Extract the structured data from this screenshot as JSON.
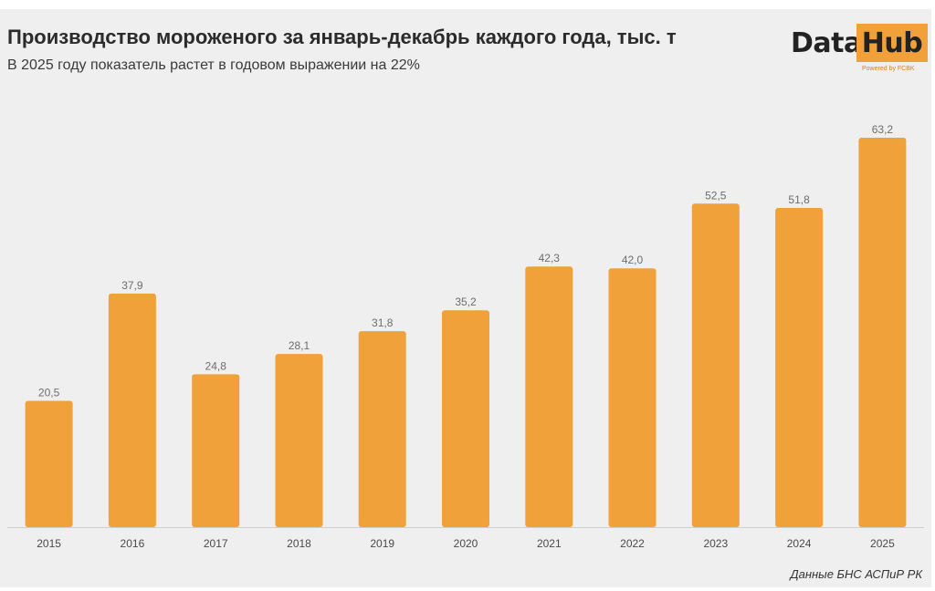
{
  "header": {
    "title": "Производство мороженого за январь-декабрь каждого года, тыс. т",
    "subtitle": "В 2025 году показатель растет в годовом выражении на 22%"
  },
  "logo": {
    "word1": "Data",
    "word2": "Hub",
    "powered": "Powered by FCBK"
  },
  "source": "Данные БНС АСПиР РК",
  "colors": {
    "bar": "#f0a13a",
    "background": "#efefef",
    "axis": "#cfcfcf"
  },
  "chart_data": {
    "type": "bar",
    "title": "Производство мороженого за январь-декабрь каждого года, тыс. т",
    "subtitle": "В 2025 году показатель растет в годовом выражении на 22%",
    "xlabel": "",
    "ylabel": "",
    "categories": [
      "2015",
      "2016",
      "2017",
      "2018",
      "2019",
      "2020",
      "2021",
      "2022",
      "2023",
      "2024",
      "2025"
    ],
    "values": [
      20.5,
      37.9,
      24.8,
      28.1,
      31.8,
      35.2,
      42.3,
      42.0,
      52.5,
      51.8,
      63.2
    ],
    "value_labels": [
      "20,5",
      "37,9",
      "24,8",
      "28,1",
      "31,8",
      "35,2",
      "42,3",
      "42,0",
      "52,5",
      "51,8",
      "63,2"
    ],
    "ylim": [
      0,
      63.2
    ],
    "grid": false,
    "legend": "none"
  }
}
